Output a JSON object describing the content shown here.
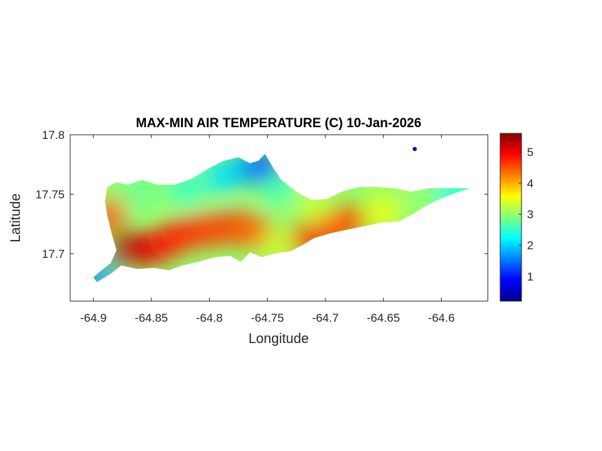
{
  "chart_data": {
    "type": "heatmap",
    "title": "MAX-MIN AIR TEMPERATURE (C) 10-Jan-2026",
    "xlabel": "Longitude",
    "ylabel": "Latitude",
    "xlim": [
      -64.92,
      -64.56
    ],
    "ylim": [
      17.66,
      17.8
    ],
    "x_ticks": [
      -64.9,
      -64.85,
      -64.8,
      -64.75,
      -64.7,
      -64.65,
      -64.6
    ],
    "x_tick_labels": [
      "-64.9",
      "-64.85",
      "-64.8",
      "-64.75",
      "-64.7",
      "-64.65",
      "-64.6"
    ],
    "y_ticks": [
      17.7,
      17.75,
      17.8
    ],
    "y_tick_labels": [
      "17.7",
      "17.75",
      "17.8"
    ],
    "colorbar": {
      "colormap": "jet",
      "clim": [
        0.2,
        5.6
      ],
      "ticks": [
        1,
        2,
        3,
        4,
        5
      ],
      "tick_labels": [
        "1",
        "2",
        "3",
        "4",
        "5"
      ]
    },
    "island_outline": [
      [
        -64.9,
        17.68
      ],
      [
        -64.893,
        17.686
      ],
      [
        -64.885,
        17.692
      ],
      [
        -64.88,
        17.703
      ],
      [
        -64.884,
        17.716
      ],
      [
        -64.888,
        17.732
      ],
      [
        -64.89,
        17.744
      ],
      [
        -64.888,
        17.756
      ],
      [
        -64.88,
        17.76
      ],
      [
        -64.87,
        17.758
      ],
      [
        -64.858,
        17.762
      ],
      [
        -64.845,
        17.758
      ],
      [
        -64.83,
        17.758
      ],
      [
        -64.815,
        17.763
      ],
      [
        -64.8,
        17.772
      ],
      [
        -64.788,
        17.778
      ],
      [
        -64.775,
        17.781
      ],
      [
        -64.765,
        17.776
      ],
      [
        -64.758,
        17.778
      ],
      [
        -64.752,
        17.784
      ],
      [
        -64.745,
        17.772
      ],
      [
        -64.738,
        17.762
      ],
      [
        -64.725,
        17.752
      ],
      [
        -64.712,
        17.745
      ],
      [
        -64.698,
        17.746
      ],
      [
        -64.686,
        17.752
      ],
      [
        -64.672,
        17.756
      ],
      [
        -64.656,
        17.756
      ],
      [
        -64.641,
        17.755
      ],
      [
        -64.626,
        17.752
      ],
      [
        -64.611,
        17.755
      ],
      [
        -64.596,
        17.755
      ],
      [
        -64.584,
        17.755
      ],
      [
        -64.575,
        17.755
      ],
      [
        -64.588,
        17.751
      ],
      [
        -64.601,
        17.746
      ],
      [
        -64.614,
        17.74
      ],
      [
        -64.625,
        17.733
      ],
      [
        -64.637,
        17.727
      ],
      [
        -64.652,
        17.726
      ],
      [
        -64.667,
        17.723
      ],
      [
        -64.682,
        17.72
      ],
      [
        -64.696,
        17.717
      ],
      [
        -64.71,
        17.713
      ],
      [
        -64.72,
        17.707
      ],
      [
        -64.73,
        17.702
      ],
      [
        -64.744,
        17.7
      ],
      [
        -64.755,
        17.697
      ],
      [
        -64.765,
        17.701
      ],
      [
        -64.773,
        17.693
      ],
      [
        -64.782,
        17.698
      ],
      [
        -64.795,
        17.697
      ],
      [
        -64.81,
        17.693
      ],
      [
        -64.823,
        17.69
      ],
      [
        -64.835,
        17.686
      ],
      [
        -64.848,
        17.688
      ],
      [
        -64.862,
        17.687
      ],
      [
        -64.876,
        17.69
      ],
      [
        -64.885,
        17.683
      ],
      [
        -64.897,
        17.676
      ]
    ],
    "temperature_hotspots": [
      {
        "lon": -64.877,
        "lat": 17.698,
        "value": 5.6
      },
      {
        "lon": -64.865,
        "lat": 17.704,
        "value": 5.3
      },
      {
        "lon": -64.847,
        "lat": 17.705,
        "value": 5.0
      },
      {
        "lon": -64.833,
        "lat": 17.712,
        "value": 4.8
      },
      {
        "lon": -64.815,
        "lat": 17.718,
        "value": 4.7
      },
      {
        "lon": -64.795,
        "lat": 17.72,
        "value": 4.6
      },
      {
        "lon": -64.775,
        "lat": 17.722,
        "value": 4.6
      },
      {
        "lon": -64.76,
        "lat": 17.718,
        "value": 4.4
      },
      {
        "lon": -64.718,
        "lat": 17.711,
        "value": 5.0
      },
      {
        "lon": -64.695,
        "lat": 17.719,
        "value": 4.6
      },
      {
        "lon": -64.68,
        "lat": 17.727,
        "value": 4.5
      },
      {
        "lon": -64.74,
        "lat": 17.706,
        "value": 3.3
      },
      {
        "lon": -64.65,
        "lat": 17.735,
        "value": 3.5
      },
      {
        "lon": -64.615,
        "lat": 17.745,
        "value": 3.0
      },
      {
        "lon": -64.59,
        "lat": 17.753,
        "value": 2.3
      },
      {
        "lon": -64.88,
        "lat": 17.745,
        "value": 2.9
      },
      {
        "lon": -64.858,
        "lat": 17.752,
        "value": 2.8
      },
      {
        "lon": -64.82,
        "lat": 17.755,
        "value": 2.5
      },
      {
        "lon": -64.79,
        "lat": 17.765,
        "value": 2.1
      },
      {
        "lon": -64.768,
        "lat": 17.772,
        "value": 1.8
      },
      {
        "lon": -64.752,
        "lat": 17.772,
        "value": 1.2
      },
      {
        "lon": -64.74,
        "lat": 17.755,
        "value": 2.6
      },
      {
        "lon": -64.71,
        "lat": 17.74,
        "value": 3.3
      },
      {
        "lon": -64.892,
        "lat": 17.684,
        "value": 2.8
      },
      {
        "lon": -64.898,
        "lat": 17.679,
        "value": 1.6
      },
      {
        "lon": -64.886,
        "lat": 17.733,
        "value": 4.5
      }
    ],
    "outlier_point": {
      "lon": -64.623,
      "lat": 17.788,
      "value": 0.5
    }
  }
}
